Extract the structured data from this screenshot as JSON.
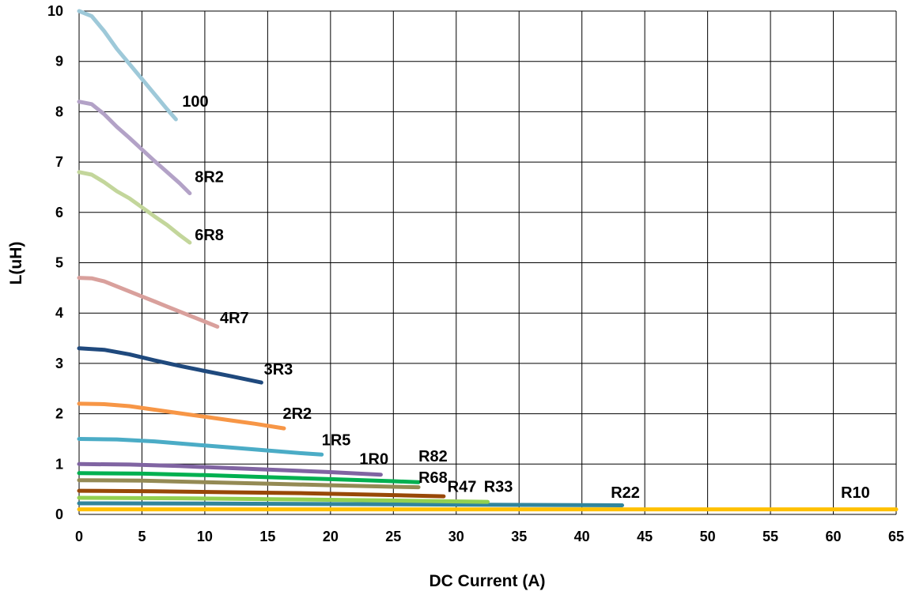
{
  "chart_data": {
    "type": "line",
    "title": "",
    "xlabel": "DC Current (A)",
    "ylabel": "L(uH)",
    "xlim": [
      0,
      65
    ],
    "ylim": [
      0,
      10
    ],
    "xticks": [
      0,
      5,
      10,
      15,
      20,
      25,
      30,
      35,
      40,
      45,
      50,
      55,
      60,
      65
    ],
    "yticks": [
      0,
      1,
      2,
      3,
      4,
      5,
      6,
      7,
      8,
      9,
      10
    ],
    "grid": true,
    "legend": "none",
    "series": [
      {
        "name": "100",
        "color": "#9ec9d9",
        "x": [
          0,
          1,
          2,
          3,
          4,
          5,
          6,
          7,
          7.7
        ],
        "y": [
          10,
          9.9,
          9.6,
          9.25,
          8.95,
          8.65,
          8.35,
          8.05,
          7.85
        ]
      },
      {
        "name": "8R2",
        "color": "#b3a2c7",
        "x": [
          0,
          1,
          2,
          3,
          4,
          5,
          6,
          7,
          8,
          8.8
        ],
        "y": [
          8.2,
          8.15,
          7.95,
          7.7,
          7.48,
          7.25,
          7.02,
          6.8,
          6.58,
          6.38
        ]
      },
      {
        "name": "6R8",
        "color": "#c3d69b",
        "x": [
          0,
          1,
          2,
          3,
          4,
          5,
          6,
          7,
          8,
          8.8
        ],
        "y": [
          6.8,
          6.75,
          6.6,
          6.42,
          6.28,
          6.1,
          5.92,
          5.75,
          5.55,
          5.4
        ]
      },
      {
        "name": "4R7",
        "color": "#d9a09c",
        "x": [
          0,
          1,
          2,
          3,
          4,
          5,
          6,
          7,
          8,
          9,
          10,
          11
        ],
        "y": [
          4.7,
          4.69,
          4.63,
          4.53,
          4.43,
          4.33,
          4.23,
          4.13,
          4.03,
          3.93,
          3.83,
          3.73
        ]
      },
      {
        "name": "3R3",
        "color": "#1f497d",
        "x": [
          0,
          2,
          4,
          6,
          8,
          10,
          12,
          14.5
        ],
        "y": [
          3.3,
          3.27,
          3.18,
          3.06,
          2.95,
          2.85,
          2.75,
          2.62
        ]
      },
      {
        "name": "2R2",
        "color": "#f79646",
        "x": [
          0,
          2,
          4,
          6,
          8,
          10,
          12,
          14,
          16.3
        ],
        "y": [
          2.2,
          2.19,
          2.15,
          2.08,
          2.01,
          1.94,
          1.87,
          1.8,
          1.71
        ]
      },
      {
        "name": "1R5",
        "color": "#4bacc6",
        "x": [
          0,
          3,
          6,
          9,
          12,
          15,
          18,
          19.3
        ],
        "y": [
          1.5,
          1.49,
          1.45,
          1.39,
          1.33,
          1.27,
          1.21,
          1.19
        ]
      },
      {
        "name": "1R0",
        "color": "#8064a2",
        "x": [
          0,
          4,
          8,
          12,
          16,
          20,
          24
        ],
        "y": [
          1.0,
          0.99,
          0.96,
          0.92,
          0.88,
          0.84,
          0.79
        ]
      },
      {
        "name": "R82",
        "color": "#00b050",
        "x": [
          0,
          5,
          10,
          15,
          20,
          25,
          27
        ],
        "y": [
          0.82,
          0.81,
          0.78,
          0.74,
          0.7,
          0.66,
          0.64
        ]
      },
      {
        "name": "R68",
        "color": "#948a54",
        "x": [
          0,
          5,
          10,
          15,
          20,
          25,
          27
        ],
        "y": [
          0.68,
          0.67,
          0.64,
          0.61,
          0.58,
          0.55,
          0.54
        ]
      },
      {
        "name": "R47",
        "color": "#984807",
        "x": [
          0,
          6,
          12,
          18,
          24,
          29
        ],
        "y": [
          0.47,
          0.46,
          0.44,
          0.42,
          0.39,
          0.36
        ]
      },
      {
        "name": "R33",
        "color": "#92d050",
        "x": [
          0,
          8,
          16,
          24,
          32.5
        ],
        "y": [
          0.33,
          0.32,
          0.3,
          0.28,
          0.25
        ]
      },
      {
        "name": "R22",
        "color": "#31859c",
        "x": [
          0,
          10,
          20,
          30,
          43.2
        ],
        "y": [
          0.22,
          0.215,
          0.205,
          0.195,
          0.18
        ]
      },
      {
        "name": "R10",
        "color": "#ffc000",
        "x": [
          0,
          20,
          40,
          65
        ],
        "y": [
          0.1,
          0.1,
          0.1,
          0.1
        ]
      }
    ],
    "series_labels": [
      {
        "series": "100",
        "text": "100",
        "x": 8.2,
        "y": 8.1
      },
      {
        "series": "8R2",
        "text": "8R2",
        "x": 9.2,
        "y": 6.6
      },
      {
        "series": "6R8",
        "text": "6R8",
        "x": 9.2,
        "y": 5.45
      },
      {
        "series": "4R7",
        "text": "4R7",
        "x": 11.2,
        "y": 3.8
      },
      {
        "series": "3R3",
        "text": "3R3",
        "x": 14.7,
        "y": 2.78
      },
      {
        "series": "2R2",
        "text": "2R2",
        "x": 16.2,
        "y": 1.9
      },
      {
        "series": "1R5",
        "text": "1R5",
        "x": 19.3,
        "y": 1.37
      },
      {
        "series": "1R0",
        "text": "1R0",
        "x": 22.3,
        "y": 1.0
      },
      {
        "series": "R82",
        "text": "R82",
        "x": 27.0,
        "y": 1.05
      },
      {
        "series": "R68",
        "text": "R68",
        "x": 27.0,
        "y": 0.63
      },
      {
        "series": "R47",
        "text": "R47",
        "x": 29.3,
        "y": 0.45
      },
      {
        "series": "R33",
        "text": "R33",
        "x": 32.2,
        "y": 0.45
      },
      {
        "series": "R22",
        "text": "R22",
        "x": 42.3,
        "y": 0.33
      },
      {
        "series": "R10",
        "text": "R10",
        "x": 60.6,
        "y": 0.33
      }
    ]
  }
}
